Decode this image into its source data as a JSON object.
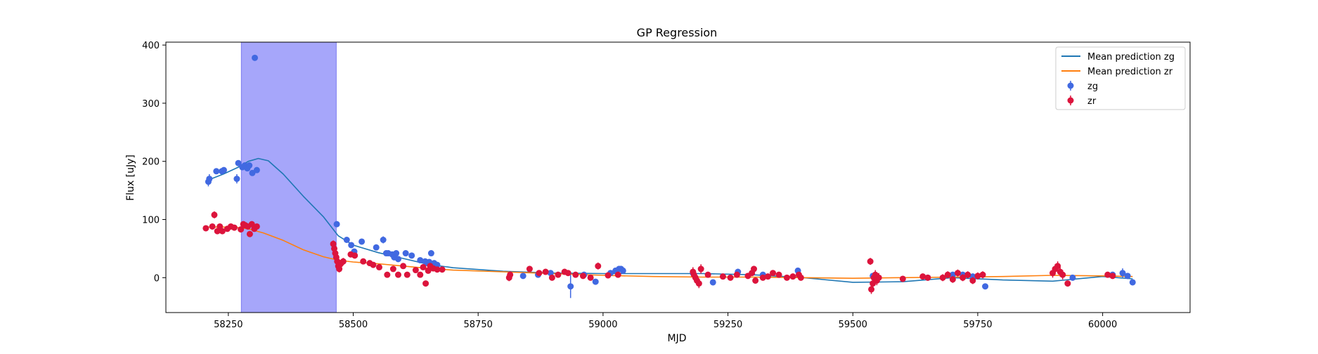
{
  "chart_data": {
    "type": "scatter",
    "title": "GP Regression",
    "xlabel": "MJD",
    "ylabel": "Flux [uJy]",
    "xlim": [
      58125,
      60175
    ],
    "ylim": [
      -60,
      405
    ],
    "xticks": [
      58250,
      58500,
      58750,
      59000,
      59250,
      59500,
      59750,
      60000
    ],
    "yticks": [
      0,
      100,
      200,
      300,
      400
    ],
    "grid": false,
    "legend_position": "top-right",
    "shaded_region": {
      "x": [
        58276,
        58466
      ],
      "color": "#a6a6fa"
    },
    "series": [
      {
        "name": "Mean prediction zg",
        "kind": "line",
        "color": "#1f77b4",
        "x": [
          58210,
          58240,
          58270,
          58290,
          58310,
          58330,
          58360,
          58400,
          58440,
          58470,
          58500,
          58550,
          58600,
          58650,
          58700,
          58800,
          58900,
          59000,
          59100,
          59200,
          59300,
          59400,
          59500,
          59600,
          59700,
          59800,
          59900,
          60000,
          60060
        ],
        "y": [
          168,
          178,
          190,
          200,
          205,
          201,
          178,
          140,
          105,
          72,
          56,
          43,
          33,
          23,
          17,
          11,
          8,
          7,
          7,
          7,
          5,
          0,
          -8,
          -7,
          0,
          -4,
          -6,
          2,
          -2
        ]
      },
      {
        "name": "Mean prediction zr",
        "kind": "line",
        "color": "#ff7f0e",
        "x": [
          58210,
          58260,
          58290,
          58320,
          58360,
          58400,
          58440,
          58470,
          58500,
          58550,
          58600,
          58650,
          58700,
          58800,
          58900,
          59000,
          59100,
          59200,
          59300,
          59400,
          59500,
          59600,
          59700,
          59800,
          59900,
          60000,
          60060
        ],
        "y": [
          87,
          87,
          84,
          77,
          64,
          48,
          36,
          30,
          27,
          24,
          20,
          16,
          13,
          10,
          7,
          4,
          2,
          1,
          1,
          0,
          -1,
          0,
          1,
          2,
          4,
          3,
          2
        ]
      },
      {
        "name": "zg",
        "kind": "errorbar",
        "color": "#4169e1",
        "x": [
          58210,
          58212,
          58226,
          58237,
          58241,
          58267,
          58270,
          58278,
          58283,
          58288,
          58292,
          58298,
          58303,
          58307,
          58467,
          58487,
          58496,
          58502,
          58517,
          58546,
          58560,
          58566,
          58570,
          58578,
          58582,
          58586,
          58590,
          58605,
          58617,
          58634,
          58644,
          58648,
          58652,
          58656,
          58662,
          58668,
          58840,
          58870,
          58895,
          58935,
          58962,
          58985,
          59015,
          59025,
          59032,
          59036,
          59040,
          59180,
          59220,
          59270,
          59320,
          59390,
          59540,
          59650,
          59700,
          59720,
          59740,
          59765,
          59940,
          60020,
          60040,
          60050,
          60060
        ],
        "y": [
          165,
          170,
          183,
          183,
          185,
          170,
          197,
          190,
          193,
          188,
          193,
          180,
          378,
          185,
          92,
          65,
          56,
          45,
          62,
          52,
          65,
          42,
          42,
          40,
          35,
          42,
          32,
          42,
          38,
          30,
          28,
          25,
          27,
          42,
          25,
          22,
          3,
          5,
          8,
          -15,
          5,
          -7,
          8,
          12,
          15,
          15,
          12,
          8,
          -8,
          10,
          5,
          12,
          3,
          0,
          5,
          5,
          2,
          -15,
          0,
          5,
          8,
          3,
          -8
        ],
        "err": [
          8,
          8,
          4,
          4,
          4,
          8,
          5,
          5,
          5,
          5,
          5,
          5,
          4,
          5,
          5,
          4,
          4,
          4,
          4,
          4,
          6,
          4,
          4,
          4,
          4,
          4,
          4,
          4,
          4,
          4,
          4,
          4,
          4,
          4,
          4,
          4,
          5,
          5,
          5,
          20,
          5,
          5,
          5,
          5,
          5,
          5,
          5,
          5,
          5,
          5,
          5,
          5,
          5,
          5,
          5,
          5,
          5,
          5,
          5,
          5,
          8,
          5,
          5
        ]
      },
      {
        "name": "zr",
        "kind": "errorbar",
        "color": "#dc143c",
        "x": [
          58205,
          58218,
          58222,
          58228,
          58233,
          58238,
          58248,
          58255,
          58262,
          58275,
          58280,
          58284,
          58289,
          58293,
          58297,
          58302,
          58307,
          58460,
          58462,
          58464,
          58466,
          58468,
          58470,
          58472,
          58474,
          58476,
          58480,
          58495,
          58503,
          58520,
          58533,
          58540,
          58552,
          58568,
          58580,
          58590,
          58600,
          58608,
          58625,
          58634,
          58640,
          58645,
          58650,
          58654,
          58660,
          58668,
          58678,
          58812,
          58814,
          58853,
          58872,
          58885,
          58898,
          58910,
          58923,
          58930,
          58945,
          58960,
          58975,
          58990,
          59010,
          59030,
          59180,
          59182,
          59185,
          59188,
          59192,
          59196,
          59210,
          59240,
          59255,
          59268,
          59290,
          59298,
          59302,
          59305,
          59320,
          59330,
          59340,
          59352,
          59368,
          59380,
          59392,
          59396,
          59535,
          59537,
          59540,
          59542,
          59545,
          59548,
          59552,
          59600,
          59640,
          59650,
          59680,
          59690,
          59700,
          59710,
          59720,
          59730,
          59740,
          59750,
          59760,
          59900,
          59905,
          59910,
          59915,
          59920,
          59930,
          60010,
          60020
        ],
        "y": [
          85,
          88,
          108,
          80,
          88,
          80,
          84,
          88,
          86,
          83,
          92,
          90,
          88,
          75,
          92,
          84,
          88,
          58,
          50,
          42,
          35,
          28,
          20,
          15,
          23,
          25,
          28,
          40,
          38,
          28,
          25,
          22,
          18,
          5,
          15,
          5,
          20,
          5,
          13,
          5,
          18,
          -10,
          12,
          20,
          16,
          14,
          14,
          0,
          5,
          15,
          8,
          10,
          0,
          5,
          10,
          8,
          5,
          3,
          0,
          20,
          4,
          5,
          10,
          5,
          0,
          -5,
          -10,
          15,
          5,
          2,
          0,
          5,
          3,
          8,
          15,
          -5,
          0,
          2,
          8,
          5,
          0,
          2,
          5,
          0,
          28,
          -20,
          -10,
          0,
          5,
          -5,
          0,
          -2,
          2,
          0,
          0,
          5,
          -3,
          8,
          0,
          5,
          -5,
          3,
          5,
          8,
          15,
          20,
          10,
          5,
          -10,
          5,
          3
        ],
        "err": [
          4,
          4,
          6,
          4,
          4,
          4,
          4,
          4,
          4,
          4,
          4,
          4,
          4,
          4,
          4,
          4,
          4,
          6,
          6,
          6,
          6,
          6,
          6,
          6,
          6,
          6,
          6,
          5,
          5,
          5,
          5,
          5,
          5,
          5,
          5,
          5,
          5,
          5,
          5,
          5,
          5,
          5,
          5,
          5,
          5,
          5,
          5,
          6,
          6,
          5,
          5,
          5,
          5,
          5,
          5,
          5,
          5,
          5,
          5,
          6,
          5,
          5,
          8,
          8,
          8,
          8,
          8,
          8,
          5,
          5,
          5,
          5,
          5,
          5,
          5,
          5,
          5,
          5,
          5,
          5,
          5,
          5,
          5,
          5,
          6,
          8,
          8,
          8,
          8,
          8,
          8,
          5,
          5,
          5,
          6,
          6,
          6,
          6,
          6,
          6,
          6,
          6,
          6,
          8,
          8,
          8,
          8,
          8,
          5,
          5,
          5
        ]
      }
    ]
  }
}
